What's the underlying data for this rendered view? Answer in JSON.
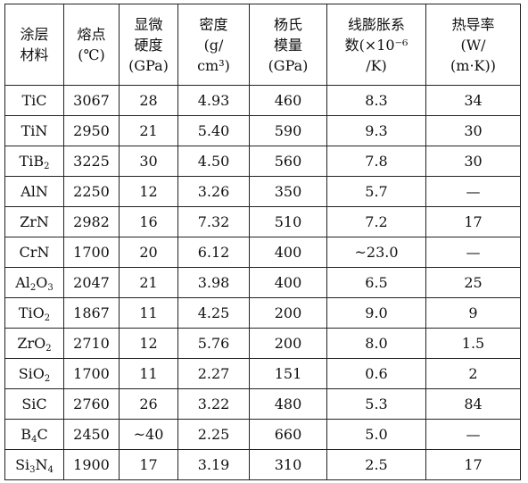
{
  "header": [
    [
      "涂层",
      "材料"
    ],
    [
      "熔点",
      "(℃)"
    ],
    [
      "显微",
      "硬度",
      "(GPa)"
    ],
    [
      "密度",
      "(g/",
      "cm³)"
    ],
    [
      "杨氏",
      "模量",
      "(GPa)"
    ],
    [
      "线膨胀系",
      "数(×10⁻⁶",
      "/K)"
    ],
    [
      "热导率",
      "(W/",
      "(m·K))"
    ]
  ],
  "rows": [
    {
      "material": {
        "parts": [
          [
            "TiC",
            ""
          ]
        ]
      },
      "cells": [
        "3067",
        "28",
        "4.93",
        "460",
        "8.3",
        "34"
      ]
    },
    {
      "material": {
        "parts": [
          [
            "TiN",
            ""
          ]
        ]
      },
      "cells": [
        "2950",
        "21",
        "5.40",
        "590",
        "9.3",
        "30"
      ]
    },
    {
      "material": {
        "parts": [
          [
            "TiB",
            "2"
          ]
        ]
      },
      "cells": [
        "3225",
        "30",
        "4.50",
        "560",
        "7.8",
        "30"
      ]
    },
    {
      "material": {
        "parts": [
          [
            "AlN",
            ""
          ]
        ]
      },
      "cells": [
        "2250",
        "12",
        "3.26",
        "350",
        "5.7",
        "—"
      ]
    },
    {
      "material": {
        "parts": [
          [
            "ZrN",
            ""
          ]
        ]
      },
      "cells": [
        "2982",
        "16",
        "7.32",
        "510",
        "7.2",
        "17"
      ]
    },
    {
      "material": {
        "parts": [
          [
            "CrN",
            ""
          ]
        ]
      },
      "cells": [
        "1700",
        "20",
        "6.12",
        "400",
        "~23.0",
        "—"
      ]
    },
    {
      "material": {
        "parts": [
          [
            "Al",
            "2"
          ],
          [
            "O",
            "3"
          ]
        ]
      },
      "cells": [
        "2047",
        "21",
        "3.98",
        "400",
        "6.5",
        "25"
      ]
    },
    {
      "material": {
        "parts": [
          [
            "TiO",
            "2"
          ]
        ]
      },
      "cells": [
        "1867",
        "11",
        "4.25",
        "200",
        "9.0",
        "9"
      ]
    },
    {
      "material": {
        "parts": [
          [
            "ZrO",
            "2"
          ]
        ]
      },
      "cells": [
        "2710",
        "12",
        "5.76",
        "200",
        "8.0",
        "1.5"
      ]
    },
    {
      "material": {
        "parts": [
          [
            "SiO",
            "2"
          ]
        ]
      },
      "cells": [
        "1700",
        "11",
        "2.27",
        "151",
        "0.6",
        "2"
      ]
    },
    {
      "material": {
        "parts": [
          [
            "SiC",
            ""
          ]
        ]
      },
      "cells": [
        "2760",
        "26",
        "3.22",
        "480",
        "5.3",
        "84"
      ]
    },
    {
      "material": {
        "parts": [
          [
            "B",
            "4"
          ],
          [
            "C",
            ""
          ]
        ]
      },
      "cells": [
        "2450",
        "~40",
        "2.25",
        "660",
        "5.0",
        "—"
      ]
    },
    {
      "material": {
        "parts": [
          [
            "Si",
            "3"
          ],
          [
            "N",
            "4"
          ]
        ]
      },
      "cells": [
        "1900",
        "17",
        "3.19",
        "310",
        "2.5",
        "17"
      ]
    }
  ]
}
